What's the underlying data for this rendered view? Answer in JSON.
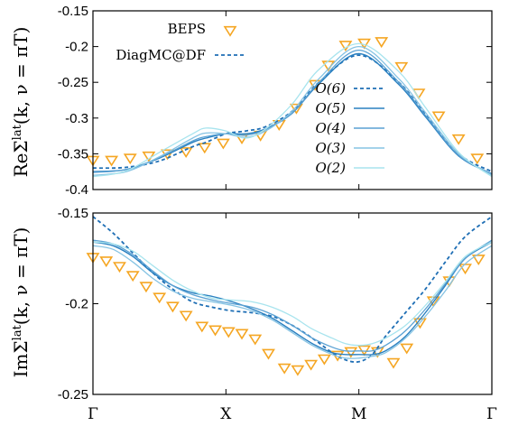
{
  "colors": {
    "beps": "#f5a623",
    "o6": "#1f6fb5",
    "o5": "#2a80c0",
    "o4": "#5aa1d3",
    "o3": "#86c3e3",
    "o2": "#a8e4ee"
  },
  "chart_data": [
    {
      "type": "line",
      "ylabel": "ReΣ^lat(k, ν = πT)",
      "ylabel_parts": {
        "base": "ReΣ",
        "sup": "lat",
        "rest": "(k, ν = πT)"
      },
      "ylim": [
        -0.4,
        -0.15
      ],
      "yticks": [
        -0.4,
        -0.35,
        -0.3,
        -0.25,
        -0.2,
        -0.15
      ],
      "ytick_labels": [
        "-0.4",
        "-0.35",
        "-0.3",
        "-0.25",
        "-0.2",
        "-0.15"
      ],
      "xlim": [
        0,
        3
      ],
      "xticks": [
        0,
        1,
        2,
        3
      ],
      "xtick_labels": [
        "Γ",
        "X",
        "M",
        "Γ"
      ],
      "legend_main": [
        {
          "label": "BEPS",
          "style": "markers"
        },
        {
          "label": "DiagMC@DF",
          "style": "dashed"
        }
      ],
      "legend_orders": [
        {
          "label": "O(6)",
          "style": "dashed"
        },
        {
          "label": "O(5)",
          "style": "solid"
        },
        {
          "label": "O(4)",
          "style": "solid"
        },
        {
          "label": "O(3)",
          "style": "solid"
        },
        {
          "label": "O(2)",
          "style": "solid"
        }
      ],
      "series": [
        {
          "name": "BEPS",
          "type": "scatter",
          "color_key": "beps",
          "x": [
            0.0,
            0.14,
            0.28,
            0.42,
            0.56,
            0.7,
            0.84,
            0.98,
            1.12,
            1.26,
            1.4,
            1.53,
            1.67,
            1.77,
            1.9,
            2.04,
            2.17,
            2.32,
            2.45,
            2.6,
            2.75,
            2.89
          ],
          "y": [
            -0.358,
            -0.358,
            -0.355,
            -0.352,
            -0.349,
            -0.346,
            -0.34,
            -0.334,
            -0.327,
            -0.323,
            -0.308,
            -0.285,
            -0.252,
            -0.225,
            -0.197,
            -0.194,
            -0.192,
            -0.227,
            -0.264,
            -0.296,
            -0.328,
            -0.355
          ]
        },
        {
          "name": "O(6)",
          "color_key": "o6",
          "dash": true,
          "width": 1.8,
          "x": [
            0,
            0.25,
            0.5,
            0.75,
            0.85,
            1.0,
            1.15,
            1.3,
            1.5,
            1.7,
            2.0,
            2.3,
            2.5,
            2.75,
            3.0
          ],
          "y": [
            -0.37,
            -0.369,
            -0.36,
            -0.34,
            -0.334,
            -0.322,
            -0.318,
            -0.312,
            -0.29,
            -0.25,
            -0.212,
            -0.25,
            -0.295,
            -0.35,
            -0.375
          ]
        },
        {
          "name": "O(5)",
          "color_key": "o5",
          "width": 1.4,
          "x": [
            0,
            0.25,
            0.5,
            0.75,
            0.85,
            1.0,
            1.15,
            1.3,
            1.5,
            1.7,
            2.0,
            2.3,
            2.5,
            2.75,
            3.0
          ],
          "y": [
            -0.375,
            -0.372,
            -0.356,
            -0.334,
            -0.328,
            -0.322,
            -0.322,
            -0.315,
            -0.293,
            -0.252,
            -0.21,
            -0.253,
            -0.298,
            -0.353,
            -0.378
          ]
        },
        {
          "name": "O(4)",
          "color_key": "o4",
          "width": 1.3,
          "x": [
            0,
            0.25,
            0.5,
            0.75,
            0.85,
            1.0,
            1.15,
            1.3,
            1.5,
            1.7,
            2.0,
            2.3,
            2.5,
            2.75,
            3.0
          ],
          "y": [
            -0.376,
            -0.372,
            -0.355,
            -0.332,
            -0.326,
            -0.322,
            -0.324,
            -0.316,
            -0.293,
            -0.25,
            -0.205,
            -0.25,
            -0.296,
            -0.352,
            -0.378
          ]
        },
        {
          "name": "O(3)",
          "color_key": "o3",
          "width": 1.3,
          "x": [
            0,
            0.25,
            0.5,
            0.75,
            0.85,
            1.0,
            1.15,
            1.3,
            1.5,
            1.7,
            2.0,
            2.3,
            2.5,
            2.75,
            3.0
          ],
          "y": [
            -0.38,
            -0.375,
            -0.354,
            -0.328,
            -0.321,
            -0.322,
            -0.327,
            -0.318,
            -0.29,
            -0.245,
            -0.2,
            -0.245,
            -0.292,
            -0.35,
            -0.38
          ]
        },
        {
          "name": "O(2)",
          "color_key": "o2",
          "width": 1.3,
          "x": [
            0,
            0.25,
            0.5,
            0.75,
            0.85,
            1.0,
            1.15,
            1.3,
            1.5,
            1.7,
            2.0,
            2.3,
            2.5,
            2.75,
            3.0
          ],
          "y": [
            -0.382,
            -0.374,
            -0.348,
            -0.322,
            -0.314,
            -0.318,
            -0.328,
            -0.315,
            -0.28,
            -0.232,
            -0.196,
            -0.235,
            -0.285,
            -0.348,
            -0.382
          ]
        }
      ]
    },
    {
      "type": "line",
      "ylabel": "ImΣ^lat(k, ν = πT)",
      "ylabel_parts": {
        "base": "ImΣ",
        "sup": "lat",
        "rest": "(k, ν = πT)"
      },
      "ylim": [
        -0.25,
        -0.15
      ],
      "yticks": [
        -0.25,
        -0.2,
        -0.15
      ],
      "ytick_labels": [
        "-0.25",
        "-0.2",
        "-0.15"
      ],
      "xlim": [
        0,
        3
      ],
      "xticks": [
        0,
        1,
        2,
        3
      ],
      "xtick_labels": [
        "Γ",
        "X",
        "M",
        "Γ"
      ],
      "series": [
        {
          "name": "BEPS",
          "type": "scatter",
          "color_key": "beps",
          "x": [
            0.0,
            0.1,
            0.2,
            0.3,
            0.4,
            0.5,
            0.6,
            0.7,
            0.82,
            0.92,
            1.02,
            1.12,
            1.22,
            1.32,
            1.44,
            1.54,
            1.64,
            1.74,
            1.84,
            1.94,
            2.04,
            2.14,
            2.26,
            2.36,
            2.46,
            2.56,
            2.68,
            2.8,
            2.9
          ],
          "y": [
            -0.174,
            -0.176,
            -0.179,
            -0.184,
            -0.19,
            -0.196,
            -0.201,
            -0.206,
            -0.212,
            -0.214,
            -0.215,
            -0.216,
            -0.219,
            -0.227,
            -0.235,
            -0.236,
            -0.233,
            -0.23,
            -0.228,
            -0.226,
            -0.225,
            -0.226,
            -0.232,
            -0.224,
            -0.21,
            -0.198,
            -0.187,
            -0.18,
            -0.175
          ]
        },
        {
          "name": "O(6)",
          "color_key": "o6",
          "dash": true,
          "width": 1.8,
          "x": [
            0,
            0.15,
            0.3,
            0.45,
            0.6,
            0.75,
            0.9,
            1.05,
            1.2,
            1.35,
            1.5,
            1.65,
            1.8,
            1.9,
            2.0,
            2.1,
            2.2,
            2.35,
            2.5,
            2.65,
            2.8,
            3.0
          ],
          "y": [
            -0.152,
            -0.161,
            -0.172,
            -0.183,
            -0.192,
            -0.199,
            -0.202,
            -0.204,
            -0.205,
            -0.207,
            -0.212,
            -0.219,
            -0.227,
            -0.231,
            -0.232,
            -0.228,
            -0.218,
            -0.205,
            -0.192,
            -0.177,
            -0.163,
            -0.152
          ]
        },
        {
          "name": "O(5)",
          "color_key": "o5",
          "width": 1.4,
          "x": [
            0,
            0.15,
            0.3,
            0.45,
            0.6,
            0.75,
            0.9,
            1.05,
            1.2,
            1.35,
            1.5,
            1.65,
            1.8,
            1.9,
            2.0,
            2.1,
            2.2,
            2.35,
            2.5,
            2.65,
            2.8,
            3.0
          ],
          "y": [
            -0.166,
            -0.168,
            -0.174,
            -0.183,
            -0.19,
            -0.194,
            -0.196,
            -0.199,
            -0.203,
            -0.208,
            -0.215,
            -0.222,
            -0.227,
            -0.228,
            -0.228,
            -0.228,
            -0.226,
            -0.218,
            -0.205,
            -0.19,
            -0.175,
            -0.166
          ]
        },
        {
          "name": "O(4)",
          "color_key": "o4",
          "width": 1.3,
          "x": [
            0,
            0.15,
            0.3,
            0.45,
            0.6,
            0.75,
            0.9,
            1.05,
            1.2,
            1.35,
            1.5,
            1.65,
            1.8,
            1.9,
            2.0,
            2.1,
            2.2,
            2.35,
            2.5,
            2.65,
            2.8,
            3.0
          ],
          "y": [
            -0.165,
            -0.167,
            -0.173,
            -0.182,
            -0.19,
            -0.195,
            -0.198,
            -0.2,
            -0.202,
            -0.206,
            -0.212,
            -0.219,
            -0.224,
            -0.226,
            -0.226,
            -0.226,
            -0.223,
            -0.215,
            -0.203,
            -0.189,
            -0.175,
            -0.165
          ]
        },
        {
          "name": "O(3)",
          "color_key": "o3",
          "width": 1.3,
          "x": [
            0,
            0.15,
            0.3,
            0.45,
            0.6,
            0.75,
            0.9,
            1.05,
            1.2,
            1.35,
            1.5,
            1.65,
            1.8,
            1.9,
            2.0,
            2.1,
            2.2,
            2.35,
            2.5,
            2.65,
            2.8,
            3.0
          ],
          "y": [
            -0.168,
            -0.17,
            -0.177,
            -0.186,
            -0.193,
            -0.197,
            -0.199,
            -0.201,
            -0.204,
            -0.209,
            -0.216,
            -0.223,
            -0.228,
            -0.23,
            -0.23,
            -0.229,
            -0.227,
            -0.219,
            -0.207,
            -0.193,
            -0.178,
            -0.168
          ]
        },
        {
          "name": "O(2)",
          "color_key": "o2",
          "width": 1.3,
          "x": [
            0,
            0.15,
            0.3,
            0.45,
            0.6,
            0.75,
            0.9,
            1.05,
            1.2,
            1.35,
            1.5,
            1.65,
            1.8,
            1.9,
            2.0,
            2.1,
            2.2,
            2.35,
            2.5,
            2.65,
            2.8,
            3.0
          ],
          "y": [
            -0.166,
            -0.167,
            -0.171,
            -0.179,
            -0.187,
            -0.193,
            -0.197,
            -0.198,
            -0.199,
            -0.202,
            -0.207,
            -0.214,
            -0.219,
            -0.222,
            -0.223,
            -0.222,
            -0.219,
            -0.212,
            -0.201,
            -0.188,
            -0.174,
            -0.166
          ]
        }
      ]
    }
  ]
}
